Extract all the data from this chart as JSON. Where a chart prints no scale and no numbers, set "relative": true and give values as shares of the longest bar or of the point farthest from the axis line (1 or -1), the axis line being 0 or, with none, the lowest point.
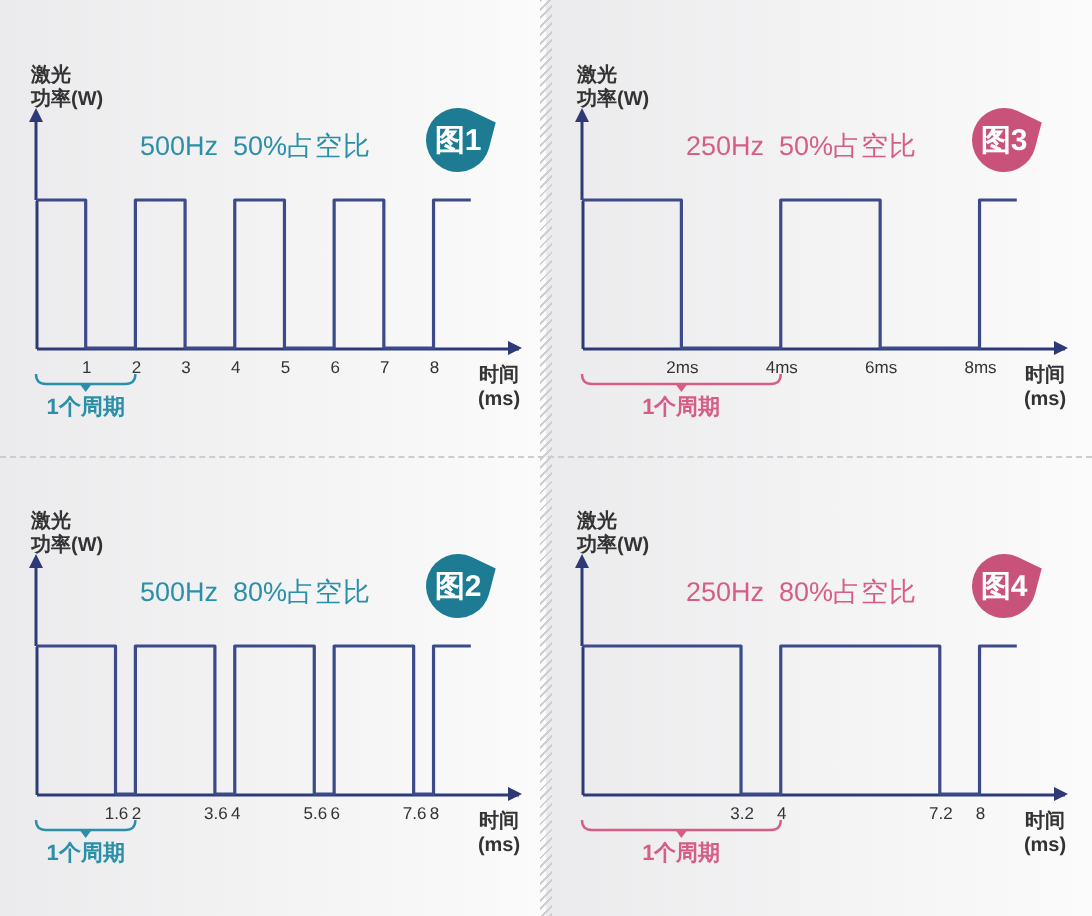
{
  "chart_data": [
    {
      "type": "step",
      "title": "500Hz  50%占空比",
      "ylabel": "激光功率(W)",
      "xlabel": "时间\n(ms)",
      "relative": true,
      "x": [
        0,
        1,
        2,
        3,
        4,
        5,
        6,
        7,
        8,
        8.75
      ],
      "series": [
        {
          "color": "#3c4a8a",
          "values": [
            1,
            0,
            1,
            0,
            1,
            0,
            1,
            0,
            1,
            1
          ]
        }
      ],
      "xlim": [
        0,
        9.7
      ],
      "xticks": [
        1,
        2,
        3,
        4,
        5,
        6,
        7,
        8
      ],
      "annotations": [
        "图1",
        "1个周期"
      ]
    },
    {
      "type": "step",
      "title": "250Hz  50%占空比",
      "ylabel": "激光功率(W)",
      "xlabel": "时间\n(ms)",
      "relative": true,
      "x": [
        0,
        2,
        4,
        6,
        8,
        8.75
      ],
      "series": [
        {
          "color": "#3c4a8a",
          "values": [
            1,
            0,
            1,
            0,
            1,
            1
          ]
        }
      ],
      "xlim": [
        0,
        9.7
      ],
      "xticks": [
        {
          "value": 2,
          "label": "2ms"
        },
        {
          "value": 4,
          "label": "4ms"
        },
        {
          "value": 6,
          "label": "6ms"
        },
        {
          "value": 8,
          "label": "8ms"
        }
      ],
      "annotations": [
        "图3",
        "1个周期"
      ]
    },
    {
      "type": "step",
      "title": "500Hz  80%占空比",
      "ylabel": "激光功率(W)",
      "xlabel": "时间\n(ms)",
      "relative": true,
      "x": [
        0,
        1.6,
        2,
        3.6,
        4,
        5.6,
        6,
        7.6,
        8,
        8.75
      ],
      "series": [
        {
          "color": "#3c4a8a",
          "values": [
            1,
            0,
            1,
            0,
            1,
            0,
            1,
            0,
            1,
            1
          ]
        }
      ],
      "xlim": [
        0,
        9.7
      ],
      "xticks": [
        1.6,
        2,
        3.6,
        4,
        5.6,
        6,
        7.6,
        8
      ],
      "annotations": [
        "图2",
        "1个周期"
      ]
    },
    {
      "type": "step",
      "title": "250Hz  80%占空比",
      "ylabel": "激光功率(W)",
      "xlabel": "时间\n(ms)",
      "relative": true,
      "x": [
        0,
        3.2,
        4,
        7.2,
        8,
        8.75
      ],
      "series": [
        {
          "color": "#3c4a8a",
          "values": [
            1,
            0,
            1,
            0,
            1,
            1
          ]
        }
      ],
      "xlim": [
        0,
        9.7
      ],
      "xticks": [
        3.2,
        4,
        7.2,
        8
      ],
      "annotations": [
        "图4",
        "1个周期"
      ]
    }
  ]
}
